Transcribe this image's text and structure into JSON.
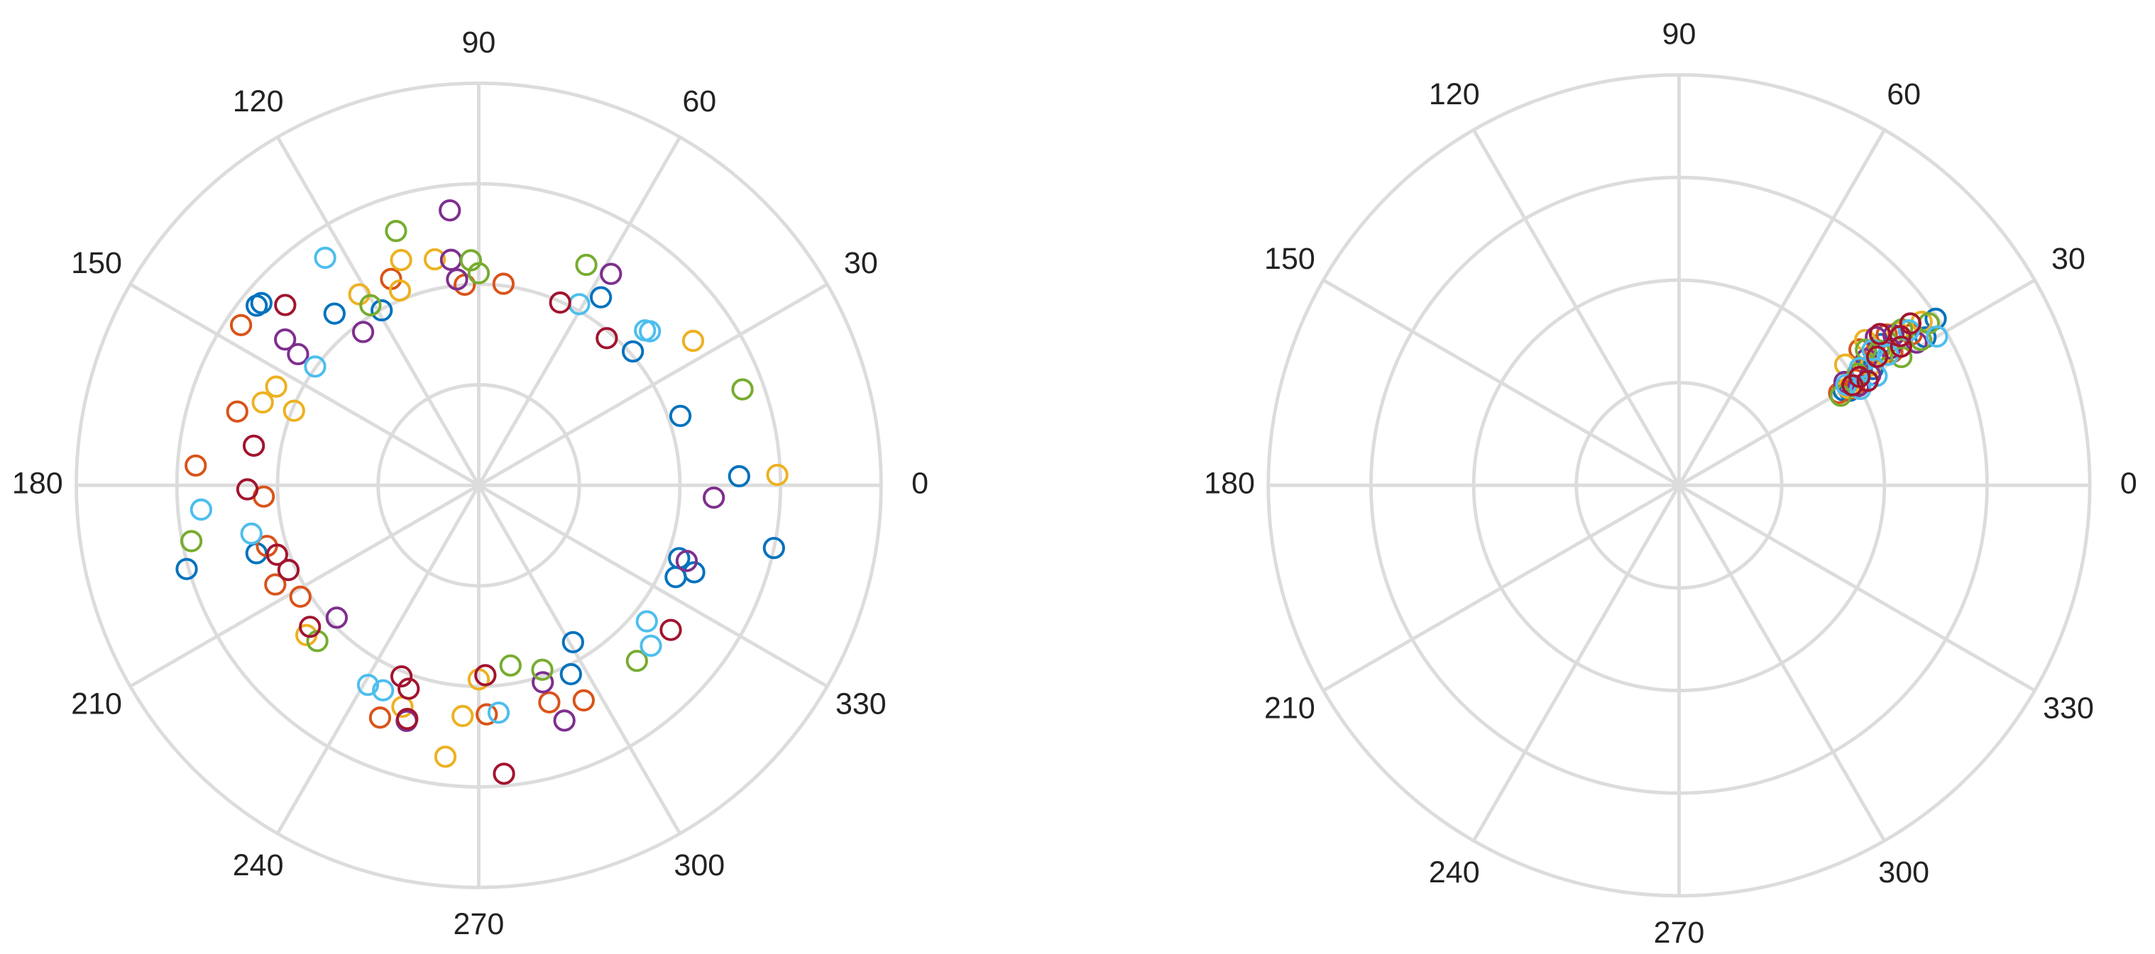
{
  "chart_data": [
    {
      "type": "polar",
      "rlim": [
        0,
        4
      ],
      "rticks": [
        1,
        2,
        3,
        4
      ],
      "grid": true,
      "thetaticks": [
        0,
        30,
        60,
        90,
        120,
        150,
        180,
        210,
        240,
        270,
        300,
        330
      ],
      "series": [
        {
          "color": "#0072BD",
          "theta": [
            141,
            140,
            130,
            119,
            57,
            41,
            19,
            2,
            348,
            340,
            338,
            335,
            301,
            296,
            197,
            196
          ],
          "r": [
            2.84,
            2.82,
            2.23,
            1.99,
            2.23,
            2.03,
            2.12,
            2.59,
            3.0,
            2.12,
            2.31,
            2.16,
            1.82,
            2.09,
            2.31,
            3.02
          ]
        },
        {
          "color": "#D95319",
          "theta": [
            146,
            113,
            83,
            94,
            163,
            176,
            183,
            196,
            206,
            212,
            247,
            272,
            288,
            296
          ],
          "r": [
            2.85,
            2.23,
            2.02,
            2.0,
            2.51,
            2.82,
            2.14,
            2.19,
            2.25,
            2.09,
            2.51,
            2.28,
            2.27,
            2.38
          ]
        },
        {
          "color": "#EDB120",
          "theta": [
            109,
            112,
            101,
            122,
            34,
            2,
            158,
            159,
            154,
            221,
            270,
            266,
            263,
            251
          ],
          "r": [
            2.37,
            2.09,
            2.29,
            2.24,
            2.57,
            2.97,
            1.98,
            2.3,
            2.24,
            2.27,
            1.93,
            2.3,
            2.72,
            2.33
          ]
        },
        {
          "color": "#7E2F8E",
          "theta": [
            96,
            97,
            96,
            58,
            127,
            143,
            144,
            357,
            340,
            223,
            288,
            290,
            253
          ],
          "r": [
            2.75,
            2.26,
            2.06,
            2.48,
            1.91,
            2.41,
            2.22,
            2.34,
            2.2,
            1.93,
            2.06,
            2.49,
            2.45
          ]
        },
        {
          "color": "#77AC30",
          "theta": [
            108,
            92,
            90,
            64,
            20,
            191,
            224,
            280,
            289,
            312,
            121
          ],
          "r": [
            2.66,
            2.24,
            2.11,
            2.44,
            2.79,
            2.91,
            2.23,
            1.82,
            1.94,
            2.35,
            2.09
          ]
        },
        {
          "color": "#4DBEEE",
          "theta": [
            124,
            61,
            43,
            42,
            144,
            185,
            192,
            321,
            317,
            241,
            275,
            245
          ],
          "r": [
            2.73,
            2.06,
            2.26,
            2.29,
            2.01,
            2.77,
            2.31,
            2.15,
            2.34,
            2.27,
            2.27,
            2.25
          ]
        },
        {
          "color": "#A2142F",
          "theta": [
            137,
            66,
            49,
            170,
            181,
            199,
            204,
            220,
            323,
            248,
            251,
            272,
            275,
            253
          ],
          "r": [
            2.63,
            1.99,
            1.94,
            2.27,
            2.3,
            2.12,
            2.07,
            2.19,
            2.39,
            2.05,
            2.14,
            1.89,
            2.88,
            2.43
          ]
        }
      ]
    },
    {
      "type": "polar",
      "rlim": [
        0,
        4
      ],
      "rticks": [
        1,
        2,
        3,
        4
      ],
      "grid": true,
      "thetaticks": [
        0,
        30,
        60,
        90,
        120,
        150,
        180,
        210,
        240,
        270,
        300,
        330
      ],
      "series": [
        {
          "color": "#0072BD",
          "theta": [
            33,
            31,
            30,
            32,
            34,
            29,
            35,
            31
          ],
          "r": [
            2.98,
            2.8,
            1.85,
            2.1,
            2.6,
            1.9,
            2.4,
            2.2
          ]
        },
        {
          "color": "#D95319",
          "theta": [
            36,
            34,
            31,
            29,
            33,
            37,
            30,
            32
          ],
          "r": [
            2.5,
            2.3,
            2.0,
            1.95,
            2.7,
            2.2,
            1.8,
            2.45
          ]
        },
        {
          "color": "#EDB120",
          "theta": [
            38,
            35,
            32,
            30,
            34,
            36,
            31,
            33
          ],
          "r": [
            2.3,
            2.6,
            2.2,
            1.9,
            2.85,
            2.0,
            2.05,
            2.35
          ]
        },
        {
          "color": "#7E2F8E",
          "theta": [
            33,
            30,
            35,
            32,
            31,
            37,
            29,
            34
          ],
          "r": [
            2.45,
            2.15,
            2.55,
            1.9,
            2.7,
            2.4,
            2.0,
            2.2
          ]
        },
        {
          "color": "#77AC30",
          "theta": [
            31,
            29,
            34,
            32,
            30,
            36,
            33,
            35
          ],
          "r": [
            2.75,
            1.8,
            2.35,
            2.05,
            2.5,
            2.25,
            2.9,
            2.65
          ]
        },
        {
          "color": "#4DBEEE",
          "theta": [
            30,
            32,
            34,
            28,
            31,
            35,
            33,
            29
          ],
          "r": [
            2.9,
            2.4,
            2.7,
            2.0,
            1.9,
            2.3,
            2.1,
            2.2
          ]
        },
        {
          "color": "#A2142F",
          "theta": [
            35,
            32,
            30,
            33,
            37,
            31,
            34,
            29
          ],
          "r": [
            2.75,
            2.55,
            1.95,
            2.3,
            2.45,
            2.05,
            2.6,
            2.1
          ]
        }
      ]
    }
  ]
}
